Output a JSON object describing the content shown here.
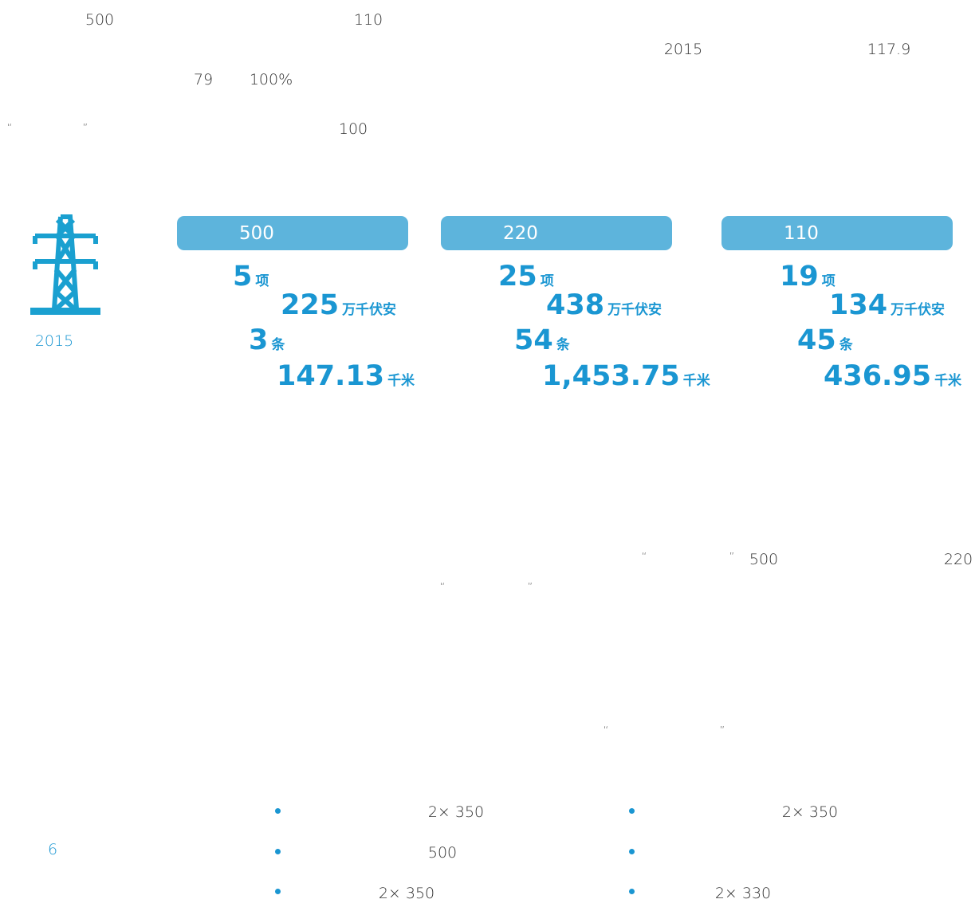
{
  "intro": {
    "fragments": [
      "500",
      "110",
      "2015",
      "117.9",
      "79",
      "100%",
      "“",
      "”",
      "100"
    ]
  },
  "tower_year": "2015",
  "panels": [
    {
      "voltage": "500",
      "rows": [
        {
          "value": "5",
          "unit": "项"
        },
        {
          "value": "225",
          "unit": "万千伏安"
        },
        {
          "value": "3",
          "unit": "条"
        },
        {
          "value": "147.13",
          "unit": "千米"
        }
      ]
    },
    {
      "voltage": "220",
      "rows": [
        {
          "value": "25",
          "unit": "项"
        },
        {
          "value": "438",
          "unit": "万千伏安"
        },
        {
          "value": "54",
          "unit": "条"
        },
        {
          "value": "1,453.75",
          "unit": "千米"
        }
      ]
    },
    {
      "voltage": "110",
      "rows": [
        {
          "value": "19",
          "unit": "项"
        },
        {
          "value": "134",
          "unit": "万千伏安"
        },
        {
          "value": "45",
          "unit": "条"
        },
        {
          "value": "436.95",
          "unit": "千米"
        }
      ]
    }
  ],
  "middle": {
    "fragments": [
      "“",
      "”",
      "500",
      "220",
      "“",
      "”",
      "“",
      "”"
    ]
  },
  "bullets": {
    "left": [
      "2× 350",
      "500",
      "2× 350"
    ],
    "right": [
      "2× 350",
      "2× 330"
    ]
  },
  "page_number": "6"
}
